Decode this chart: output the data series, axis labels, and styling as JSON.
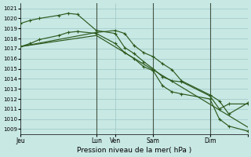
{
  "background_color": "#c8e8e4",
  "grid_color": "#90c0bc",
  "line_color": "#2d5a1e",
  "vline_color": "#445544",
  "xlabel": "Pression niveau de la mer( hPa )",
  "ylim": [
    1008.5,
    1021.5
  ],
  "yticks": [
    1009,
    1010,
    1011,
    1012,
    1013,
    1014,
    1015,
    1016,
    1017,
    1018,
    1019,
    1020,
    1021
  ],
  "xlim": [
    0,
    336
  ],
  "xtick_positions": [
    0,
    112,
    140,
    196,
    280,
    336
  ],
  "xtick_labels": [
    "Jeu",
    "Lun",
    "Ven",
    "Sam",
    "Dim",
    ""
  ],
  "vline_positions": [
    112,
    196,
    280
  ],
  "line1_x": [
    0,
    14,
    28,
    56,
    70,
    84,
    112,
    140,
    154,
    168,
    182,
    196,
    210,
    224,
    238,
    280,
    294,
    308,
    336
  ],
  "line1_y": [
    1019.5,
    1019.8,
    1020.0,
    1020.3,
    1020.5,
    1020.4,
    1018.8,
    1018.5,
    1017.1,
    1016.5,
    1015.7,
    1015.0,
    1014.2,
    1013.8,
    1013.7,
    1012.3,
    1011.0,
    1011.5,
    1011.5
  ],
  "line2_x": [
    0,
    14,
    28,
    56,
    70,
    84,
    112,
    140,
    154,
    168,
    182,
    196,
    210,
    224,
    238,
    280,
    294,
    308,
    336
  ],
  "line2_y": [
    1017.2,
    1017.5,
    1017.9,
    1018.3,
    1018.6,
    1018.7,
    1018.5,
    1017.5,
    1016.6,
    1016.0,
    1015.2,
    1014.8,
    1013.3,
    1012.7,
    1012.5,
    1012.0,
    1010.0,
    1009.3,
    1008.8
  ],
  "line3_x": [
    0,
    112,
    140,
    154,
    168,
    182,
    196,
    210,
    224,
    238,
    280,
    294,
    308,
    336
  ],
  "line3_y": [
    1017.2,
    1018.6,
    1018.8,
    1018.5,
    1017.3,
    1016.6,
    1016.2,
    1015.5,
    1014.9,
    1013.8,
    1012.4,
    1011.8,
    1010.5,
    1011.6
  ],
  "line4_x": [
    0,
    112,
    336
  ],
  "line4_y": [
    1017.2,
    1018.3,
    1009.2
  ]
}
